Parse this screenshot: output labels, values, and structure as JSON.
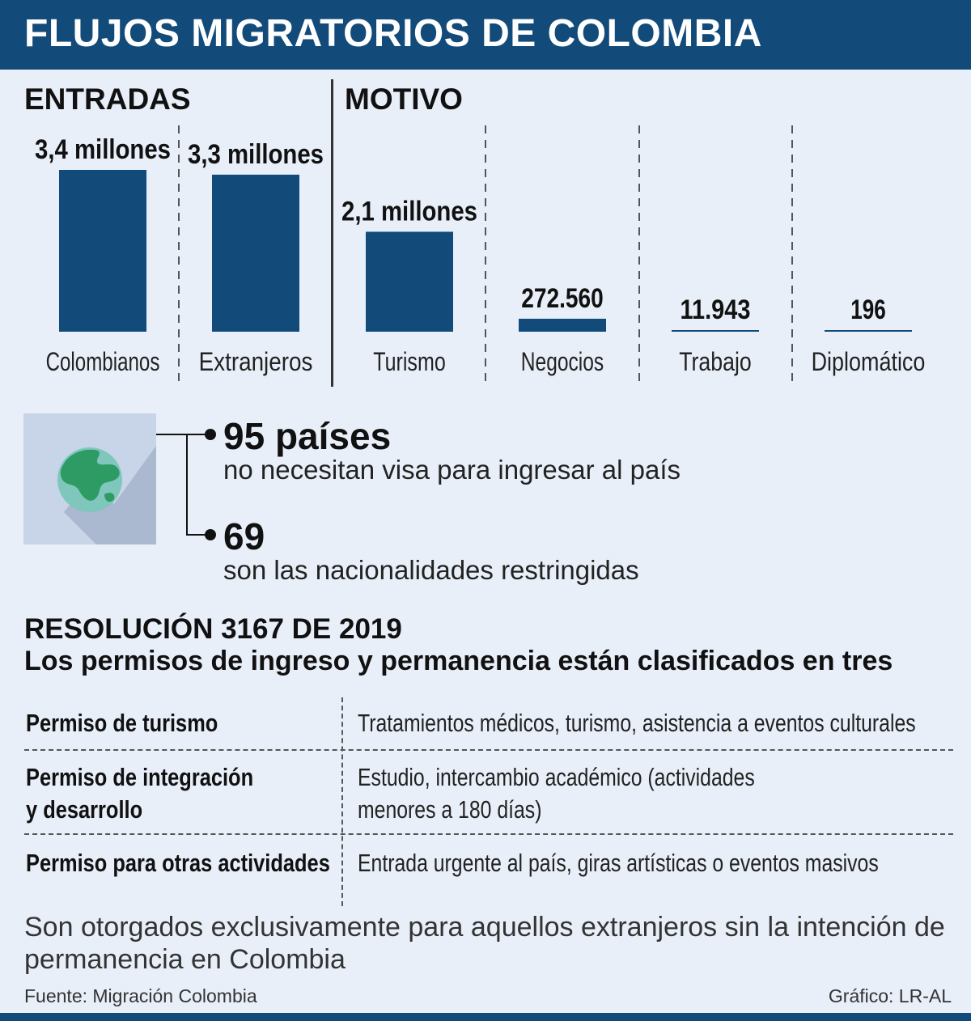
{
  "title": "FLUJOS MIGRATORIOS DE COLOMBIA",
  "colors": {
    "bar": "#124b7a",
    "title_bg": "#124b7a",
    "globe_land": "#2e9a64",
    "globe_water": "#7fc7bd"
  },
  "chart_data": [
    {
      "type": "bar",
      "title": "ENTRADAS",
      "categories": [
        "Colombianos",
        "Extranjeros"
      ],
      "values": [
        3400000,
        3300000
      ],
      "value_labels": [
        "3,4 millones",
        "3,3 millones"
      ]
    },
    {
      "type": "bar",
      "title": "MOTIVO",
      "categories": [
        "Turismo",
        "Negocios",
        "Trabajo",
        "Diplomático"
      ],
      "values": [
        2100000,
        272560,
        11943,
        196
      ],
      "value_labels": [
        "2,1 millones",
        "272.560",
        "11.943",
        "196"
      ]
    }
  ],
  "globe_icon": "globe-icon",
  "stats": [
    {
      "number": "95 países",
      "text": "no necesitan visa para ingresar al país"
    },
    {
      "number": "69",
      "text": "son las nacionalidades restringidas"
    }
  ],
  "resolution": {
    "title": "RESOLUCIÓN 3167 DE 2019",
    "subtitle": "Los permisos de ingreso y permanencia están clasificados en tres",
    "permits": [
      {
        "name": "Permiso de turismo",
        "description": "Tratamientos médicos, turismo, asistencia a eventos culturales"
      },
      {
        "name_line1": "Permiso de integración",
        "name_line2": "y desarrollo",
        "description_line1": "Estudio, intercambio académico (actividades",
        "description_line2": "menores a 180 días)"
      },
      {
        "name": "Permiso para otras actividades",
        "description": "Entrada urgente al país, giras artísticas o eventos masivos"
      }
    ]
  },
  "footnote": "Son otorgados exclusivamente para aquellos extranjeros sin la intención de permanencia en Colombia",
  "source": "Fuente: Migración Colombia",
  "credit": "Gráfico: LR-AL"
}
